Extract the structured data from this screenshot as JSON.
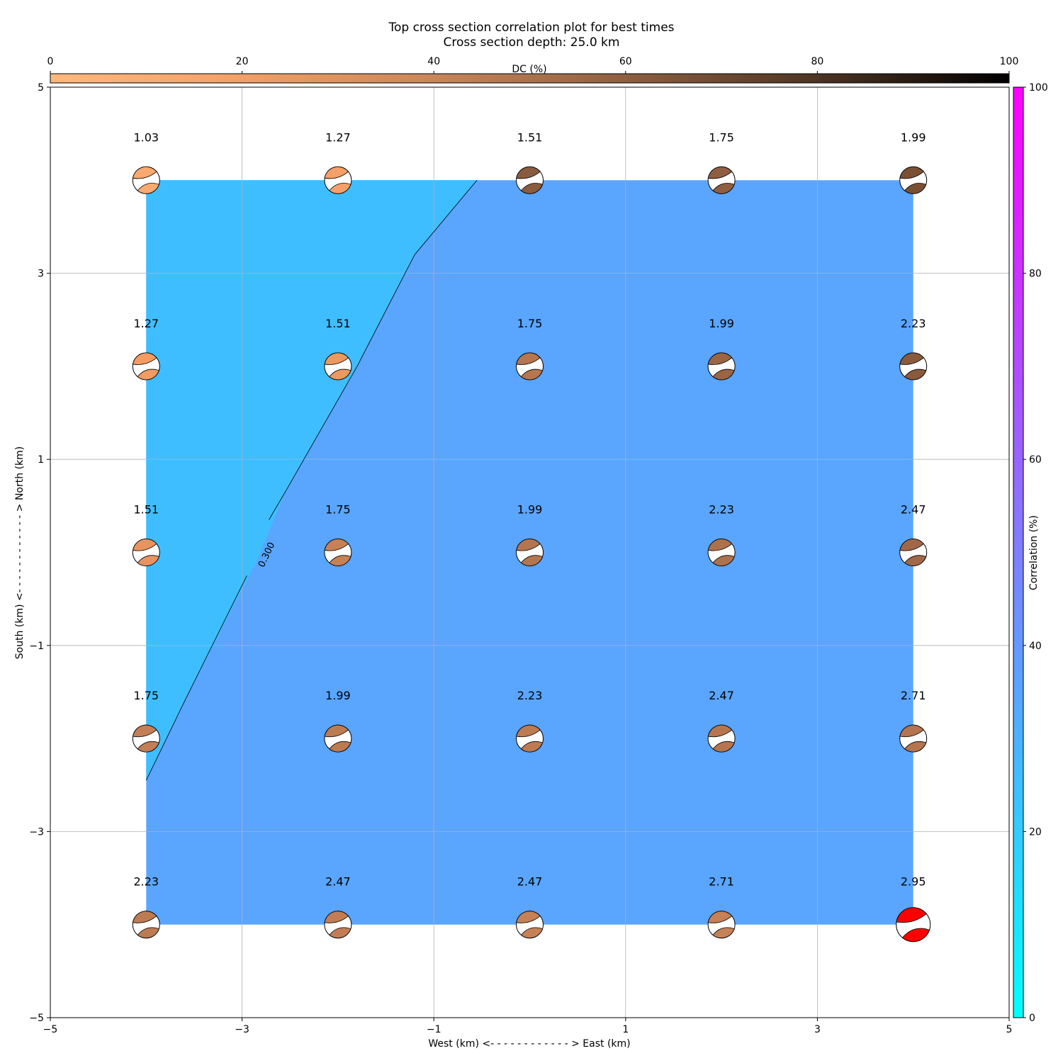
{
  "chart_data": {
    "type": "heatmap",
    "title": "Top cross section correlation plot for best times",
    "subtitle": "Cross section depth: 25.0 km",
    "xlabel": "West (km) <- - - - - - - - - - - - > East (km)",
    "ylabel": "South (km) <- - - - - - - - - - - - > North (km)",
    "xlim": [
      -5,
      5
    ],
    "ylim": [
      -5,
      5
    ],
    "xticks": [
      -5,
      -3,
      -1,
      1,
      3,
      5
    ],
    "yticks": [
      -5,
      -3,
      -1,
      1,
      3,
      5
    ],
    "grid": true,
    "dc_colorbar": {
      "label": "DC (%)",
      "placement": "top",
      "range": [
        0,
        100
      ],
      "ticks": [
        0,
        20,
        40,
        60,
        80,
        100
      ],
      "colors": [
        "#ffb87c",
        "#f2a066",
        "#c88659",
        "#8e5f40",
        "#4d3424",
        "#000000"
      ]
    },
    "correlation_colorbar": {
      "label": "Correlation (%)",
      "placement": "right",
      "range": [
        0,
        100
      ],
      "ticks": [
        0,
        20,
        40,
        60,
        80,
        100
      ],
      "colors": [
        "#00ffff",
        "#3fbfff",
        "#7f7fff",
        "#bf3fff",
        "#ff00ff"
      ]
    },
    "field": {
      "x_extent": [
        -4,
        4
      ],
      "y_extent": [
        -4,
        4
      ],
      "regions": [
        {
          "name": "",
          "color": "#3fbeff"
        },
        {
          "name": "",
          "color": "#5aa5fe"
        }
      ],
      "contour": {
        "label": "0.300",
        "points": [
          [
            -4.0,
            -2.45
          ],
          [
            -3.6,
            -1.6
          ],
          [
            -2.85,
            -0.1
          ],
          [
            -2.55,
            0.65
          ],
          [
            -1.8,
            2.0
          ],
          [
            -1.2,
            3.2
          ],
          [
            -0.55,
            4.0
          ]
        ]
      }
    },
    "x": [
      -4,
      -2,
      0,
      2,
      4
    ],
    "y": [
      4,
      2,
      0,
      -2,
      -4
    ],
    "values": [
      [
        1.03,
        1.27,
        1.51,
        1.75,
        1.99
      ],
      [
        1.27,
        1.51,
        1.75,
        1.99,
        2.23
      ],
      [
        1.51,
        1.75,
        1.99,
        2.23,
        2.47
      ],
      [
        1.75,
        1.99,
        2.23,
        2.47,
        2.71
      ],
      [
        2.23,
        2.47,
        2.47,
        2.71,
        2.95
      ]
    ],
    "beachball_colors": [
      [
        "#fca96f",
        "#f5a068",
        "#8a5c3f",
        "#8f5e41",
        "#7a5034"
      ],
      [
        "#f49b62",
        "#ec995f",
        "#b6764f",
        "#9a6545",
        "#8a5a3c"
      ],
      [
        "#e79460",
        "#c68156",
        "#b4764f",
        "#ad714d",
        "#a06848"
      ],
      [
        "#c47e55",
        "#bd7b52",
        "#bd7b52",
        "#b5764f",
        "#b3744f"
      ],
      [
        "#bd7b52",
        "#c27d54",
        "#c68156",
        "#c68156",
        "#ff0000"
      ]
    ],
    "best_solution": {
      "x": 4,
      "y": -4,
      "color": "#ff0000"
    }
  }
}
